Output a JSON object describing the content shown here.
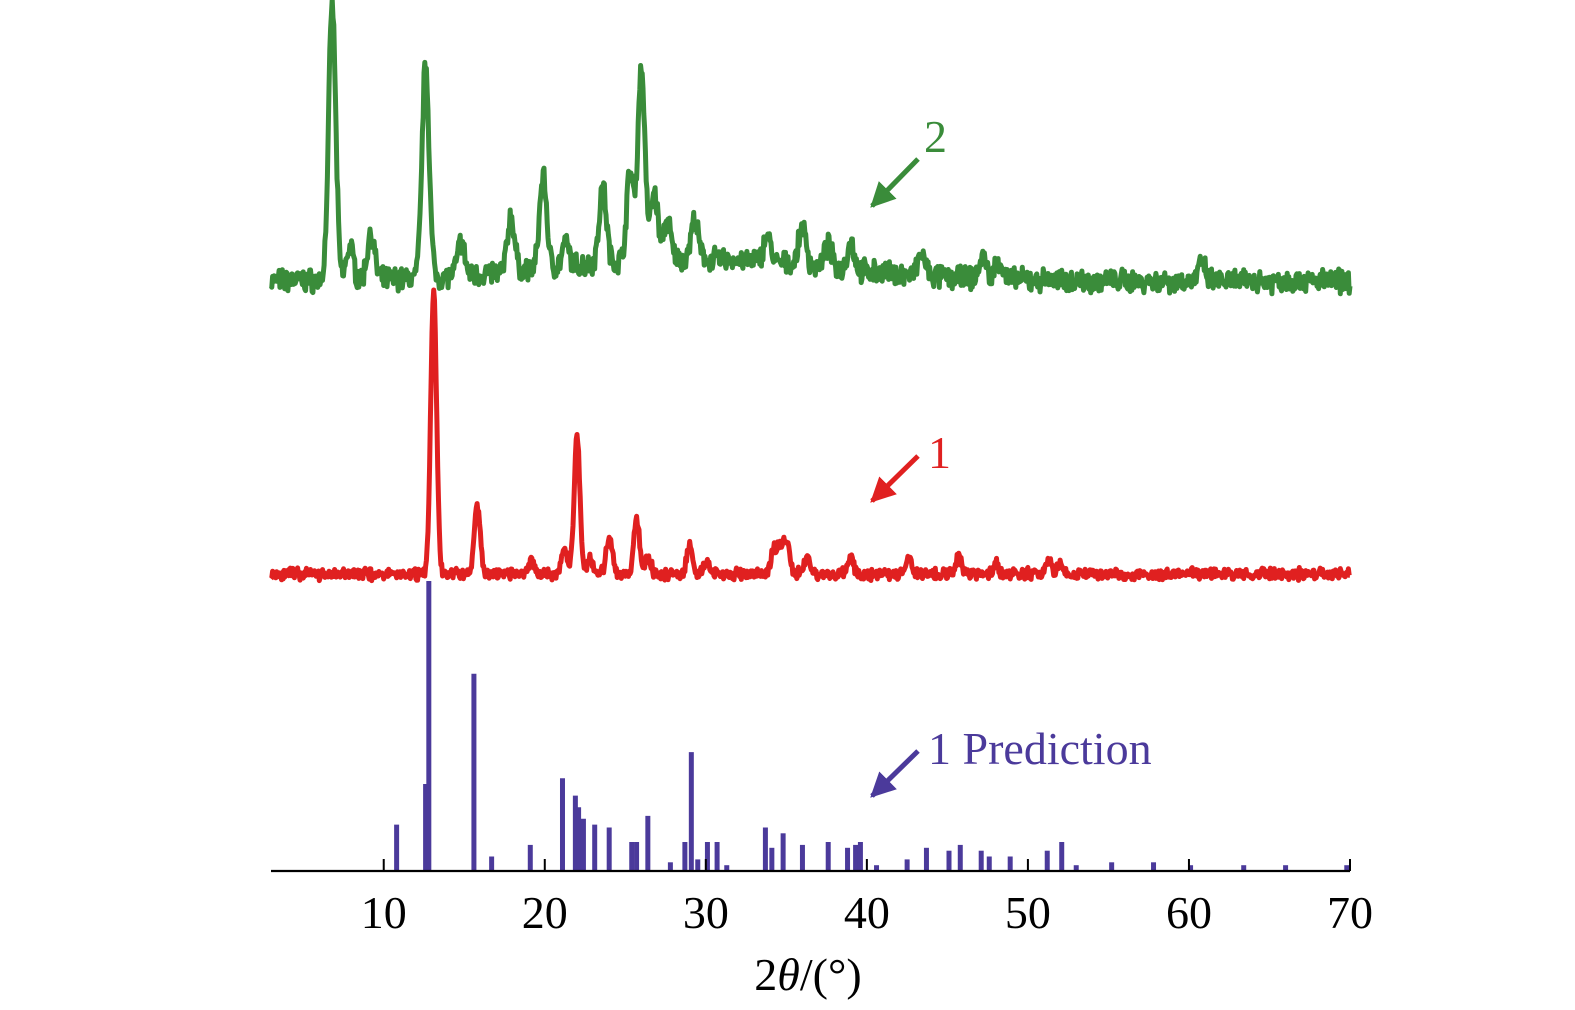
{
  "chart_data": {
    "type": "line",
    "xlabel_prefix": "2",
    "xlabel_theta": "θ",
    "xlabel_suffix": "/(°)",
    "ylabel": "",
    "xlim": [
      3,
      70
    ],
    "x_ticks": [
      10,
      20,
      30,
      40,
      50,
      60,
      70
    ],
    "tick_labels": [
      "10",
      "20",
      "30",
      "40",
      "50",
      "60",
      "70"
    ],
    "grid": false,
    "series": [
      {
        "name": "2",
        "color": "#3a8c3a",
        "style": "line",
        "peaks": [
          {
            "x": 6.8,
            "h": 1.0
          },
          {
            "x": 7.9,
            "h": 0.12
          },
          {
            "x": 9.2,
            "h": 0.17
          },
          {
            "x": 12.6,
            "h": 0.78
          },
          {
            "x": 14.8,
            "h": 0.12
          },
          {
            "x": 17.9,
            "h": 0.2
          },
          {
            "x": 19.9,
            "h": 0.34
          },
          {
            "x": 21.3,
            "h": 0.08
          },
          {
            "x": 23.6,
            "h": 0.28
          },
          {
            "x": 25.3,
            "h": 0.32
          },
          {
            "x": 26.0,
            "h": 0.7
          },
          {
            "x": 26.8,
            "h": 0.25
          },
          {
            "x": 27.6,
            "h": 0.14
          },
          {
            "x": 29.3,
            "h": 0.14
          },
          {
            "x": 33.8,
            "h": 0.1
          },
          {
            "x": 36.0,
            "h": 0.14
          },
          {
            "x": 37.6,
            "h": 0.08
          },
          {
            "x": 39.0,
            "h": 0.1
          },
          {
            "x": 43.4,
            "h": 0.08
          },
          {
            "x": 47.2,
            "h": 0.08
          },
          {
            "x": 48.2,
            "h": 0.07
          },
          {
            "x": 60.8,
            "h": 0.06
          }
        ]
      },
      {
        "name": "1",
        "color": "#e02020",
        "style": "line",
        "peaks": [
          {
            "x": 13.1,
            "h": 1.0
          },
          {
            "x": 15.8,
            "h": 0.25
          },
          {
            "x": 19.2,
            "h": 0.05
          },
          {
            "x": 21.2,
            "h": 0.09
          },
          {
            "x": 22.0,
            "h": 0.49
          },
          {
            "x": 22.8,
            "h": 0.05
          },
          {
            "x": 24.0,
            "h": 0.13
          },
          {
            "x": 25.7,
            "h": 0.2
          },
          {
            "x": 26.4,
            "h": 0.06
          },
          {
            "x": 29.0,
            "h": 0.1
          },
          {
            "x": 30.0,
            "h": 0.05
          },
          {
            "x": 34.2,
            "h": 0.08
          },
          {
            "x": 34.6,
            "h": 0.09
          },
          {
            "x": 35.0,
            "h": 0.12
          },
          {
            "x": 36.3,
            "h": 0.06
          },
          {
            "x": 39.0,
            "h": 0.06
          },
          {
            "x": 42.6,
            "h": 0.05
          },
          {
            "x": 45.7,
            "h": 0.06
          },
          {
            "x": 48.0,
            "h": 0.04
          },
          {
            "x": 51.3,
            "h": 0.05
          },
          {
            "x": 52.0,
            "h": 0.03
          }
        ]
      },
      {
        "name": "1 Prediction",
        "color": "#4b3a9b",
        "style": "sticks",
        "peaks": [
          {
            "x": 10.8,
            "h": 0.16
          },
          {
            "x": 12.6,
            "h": 0.3
          },
          {
            "x": 12.8,
            "h": 1.0
          },
          {
            "x": 15.6,
            "h": 0.68
          },
          {
            "x": 16.7,
            "h": 0.05
          },
          {
            "x": 19.1,
            "h": 0.09
          },
          {
            "x": 21.1,
            "h": 0.32
          },
          {
            "x": 21.9,
            "h": 0.26
          },
          {
            "x": 22.1,
            "h": 0.22
          },
          {
            "x": 22.4,
            "h": 0.18
          },
          {
            "x": 23.1,
            "h": 0.16
          },
          {
            "x": 24.0,
            "h": 0.15
          },
          {
            "x": 25.4,
            "h": 0.1
          },
          {
            "x": 25.7,
            "h": 0.1
          },
          {
            "x": 26.4,
            "h": 0.19
          },
          {
            "x": 27.8,
            "h": 0.03
          },
          {
            "x": 28.7,
            "h": 0.1
          },
          {
            "x": 29.1,
            "h": 0.41
          },
          {
            "x": 29.5,
            "h": 0.04
          },
          {
            "x": 30.1,
            "h": 0.1
          },
          {
            "x": 30.7,
            "h": 0.1
          },
          {
            "x": 31.3,
            "h": 0.02
          },
          {
            "x": 33.7,
            "h": 0.15
          },
          {
            "x": 34.1,
            "h": 0.08
          },
          {
            "x": 34.8,
            "h": 0.13
          },
          {
            "x": 36.0,
            "h": 0.09
          },
          {
            "x": 37.6,
            "h": 0.1
          },
          {
            "x": 38.8,
            "h": 0.08
          },
          {
            "x": 39.3,
            "h": 0.09
          },
          {
            "x": 39.6,
            "h": 0.1
          },
          {
            "x": 40.6,
            "h": 0.02
          },
          {
            "x": 42.5,
            "h": 0.04
          },
          {
            "x": 43.7,
            "h": 0.08
          },
          {
            "x": 45.1,
            "h": 0.07
          },
          {
            "x": 45.8,
            "h": 0.09
          },
          {
            "x": 47.1,
            "h": 0.07
          },
          {
            "x": 47.6,
            "h": 0.05
          },
          {
            "x": 48.9,
            "h": 0.05
          },
          {
            "x": 51.2,
            "h": 0.07
          },
          {
            "x": 52.1,
            "h": 0.1
          },
          {
            "x": 53.0,
            "h": 0.02
          },
          {
            "x": 55.2,
            "h": 0.03
          },
          {
            "x": 57.8,
            "h": 0.03
          },
          {
            "x": 60.1,
            "h": 0.02
          },
          {
            "x": 63.4,
            "h": 0.02
          },
          {
            "x": 66.0,
            "h": 0.02
          },
          {
            "x": 69.8,
            "h": 0.02
          }
        ]
      }
    ],
    "annotations": [
      {
        "text": "2",
        "color": "#3a8c3a"
      },
      {
        "text": "1",
        "color": "#e02020"
      },
      {
        "text": "1 Prediction",
        "color": "#4b3a9b"
      }
    ]
  }
}
